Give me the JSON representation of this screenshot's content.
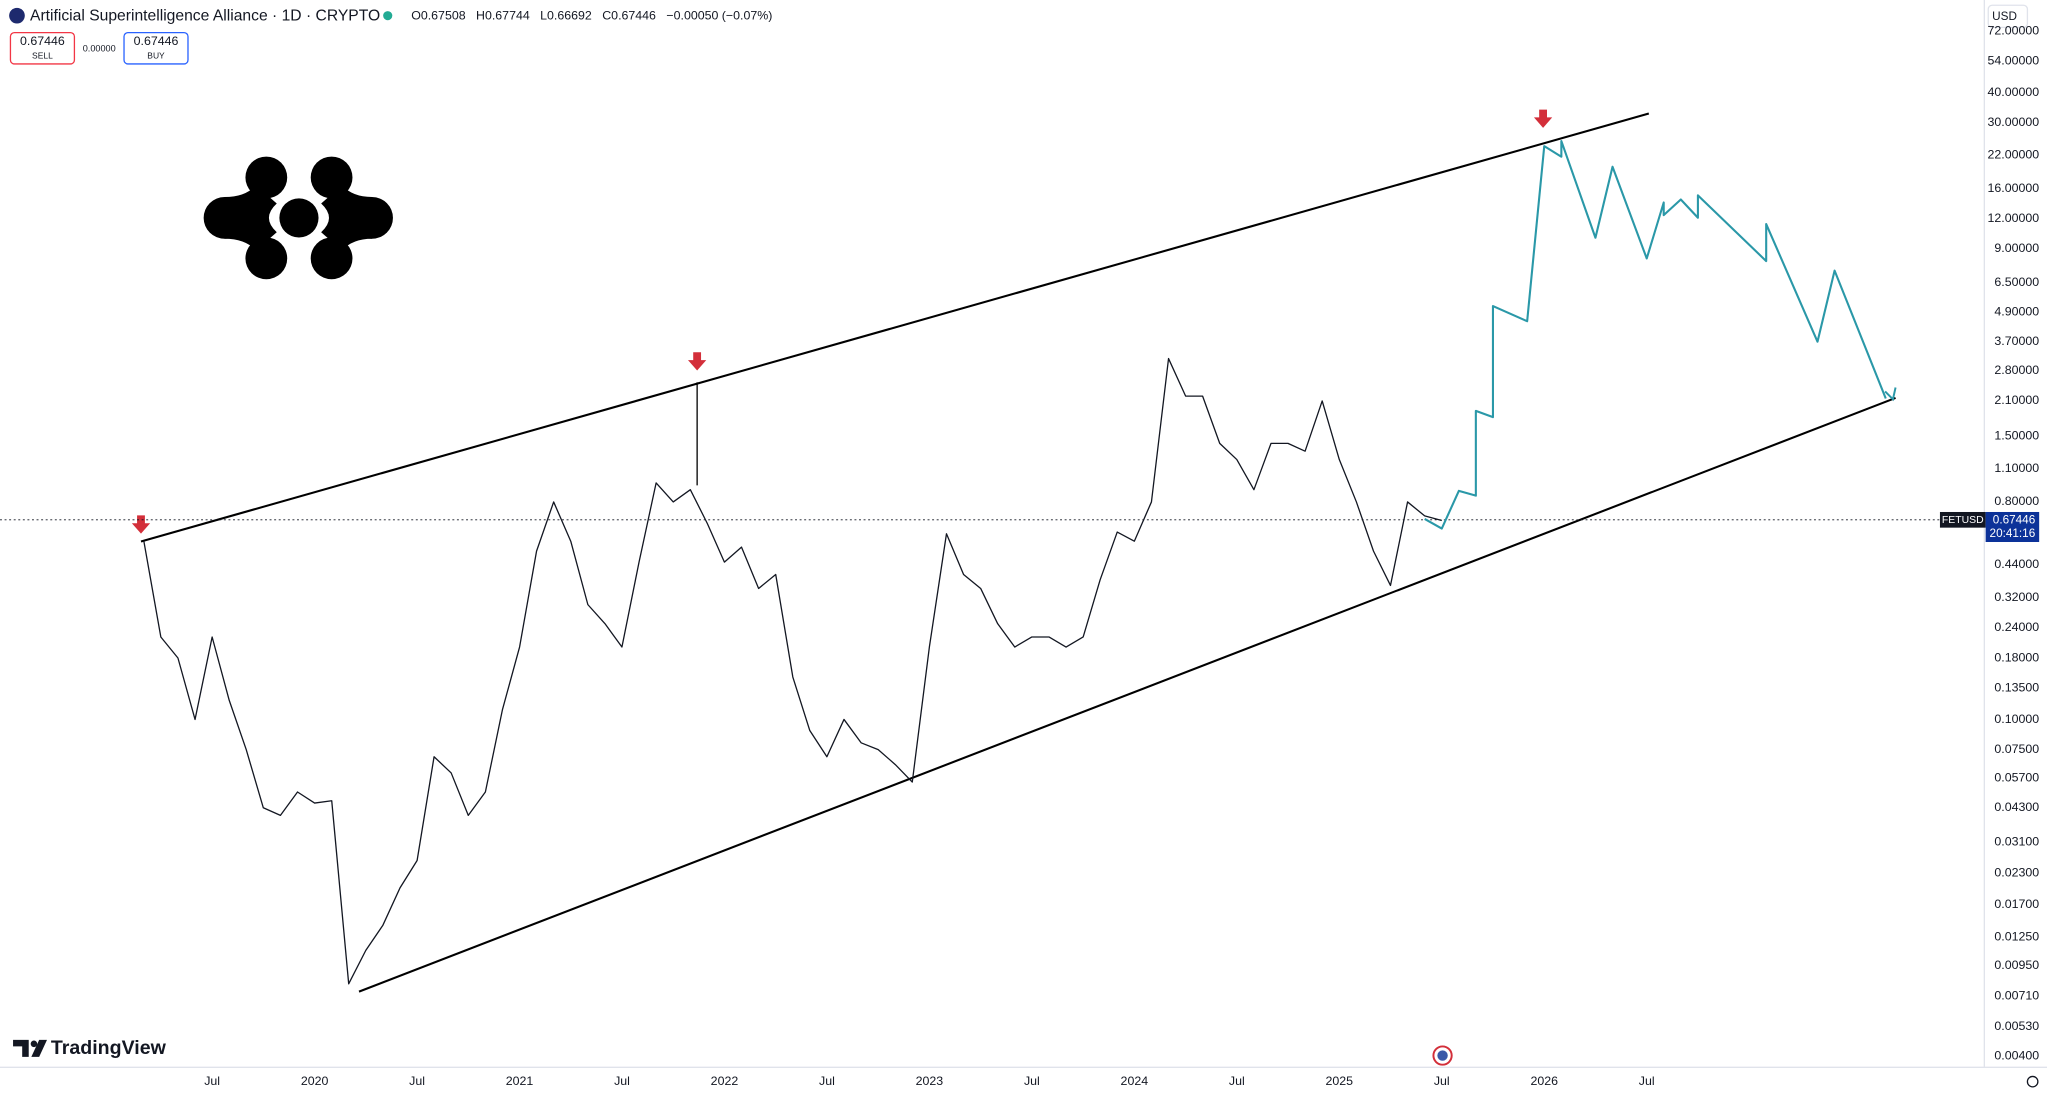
{
  "header": {
    "title": "Artificial Superintelligence Alliance · 1D · CRYPTO",
    "ohlc": [
      "O0.67508",
      "H0.67744",
      "L0.66692",
      "C0.67446",
      "−0.00050 (−0.07%)"
    ],
    "sell_price": "0.67446",
    "sell": "SELL",
    "spread": "0.00000",
    "buy_price": "0.67446",
    "buy": "BUY",
    "currency": "USD"
  },
  "price_tag": {
    "symbol": "FETUSD",
    "countdown": "20:41:16"
  },
  "brand": "TradingView",
  "chart_data": {
    "type": "line",
    "log_scale": true,
    "grid": false,
    "last": 0.67446,
    "xlim": [
      "2018-07",
      "2028-03"
    ],
    "xticks": [
      {
        "value": "2019-07",
        "label": "Jul"
      },
      {
        "value": "2020-01",
        "label": "2020"
      },
      {
        "value": "2020-07",
        "label": "Jul"
      },
      {
        "value": "2021-01",
        "label": "2021"
      },
      {
        "value": "2021-07",
        "label": "Jul"
      },
      {
        "value": "2022-01",
        "label": "2022"
      },
      {
        "value": "2022-07",
        "label": "Jul"
      },
      {
        "value": "2023-01",
        "label": "2023"
      },
      {
        "value": "2023-07",
        "label": "Jul"
      },
      {
        "value": "2024-01",
        "label": "2024"
      },
      {
        "value": "2024-07",
        "label": "Jul"
      },
      {
        "value": "2025-01",
        "label": "2025"
      },
      {
        "value": "2025-07",
        "label": "Jul"
      },
      {
        "value": "2026-01",
        "label": "2026"
      },
      {
        "value": "2026-07",
        "label": "Jul"
      }
    ],
    "ylim": [
      0.0036,
      97
    ],
    "yticks": [
      {
        "value": 72,
        "label": "72.00000"
      },
      {
        "value": 54,
        "label": "54.00000"
      },
      {
        "value": 40,
        "label": "40.00000"
      },
      {
        "value": 30,
        "label": "30.00000"
      },
      {
        "value": 22,
        "label": "22.00000"
      },
      {
        "value": 16,
        "label": "16.00000"
      },
      {
        "value": 12,
        "label": "12.00000"
      },
      {
        "value": 9,
        "label": "9.00000"
      },
      {
        "value": 6.5,
        "label": "6.50000"
      },
      {
        "value": 4.9,
        "label": "4.90000"
      },
      {
        "value": 3.7,
        "label": "3.70000"
      },
      {
        "value": 2.8,
        "label": "2.80000"
      },
      {
        "value": 2.1,
        "label": "2.10000"
      },
      {
        "value": 1.5,
        "label": "1.50000"
      },
      {
        "value": 1.1,
        "label": "1.10000"
      },
      {
        "value": 0.8,
        "label": "0.80000"
      },
      {
        "value": 0.44,
        "label": "0.44000"
      },
      {
        "value": 0.32,
        "label": "0.32000"
      },
      {
        "value": 0.24,
        "label": "0.24000"
      },
      {
        "value": 0.18,
        "label": "0.18000"
      },
      {
        "value": 0.135,
        "label": "0.13500"
      },
      {
        "value": 0.1,
        "label": "0.10000"
      },
      {
        "value": 0.075,
        "label": "0.07500"
      },
      {
        "value": 0.057,
        "label": "0.05700"
      },
      {
        "value": 0.043,
        "label": "0.04300"
      },
      {
        "value": 0.031,
        "label": "0.03100"
      },
      {
        "value": 0.023,
        "label": "0.02300"
      },
      {
        "value": 0.017,
        "label": "0.01700"
      },
      {
        "value": 0.0125,
        "label": "0.01250"
      },
      {
        "value": 0.0095,
        "label": "0.00950"
      },
      {
        "value": 0.0071,
        "label": "0.00710"
      },
      {
        "value": 0.0053,
        "label": "0.00530"
      },
      {
        "value": 0.004,
        "label": "0.00400"
      }
    ],
    "series": [
      {
        "color": "#131722",
        "x": [
          "2019-03",
          "2019-04",
          "2019-05",
          "2019-06",
          "2019-07",
          "2019-08",
          "2019-09",
          "2019-10",
          "2019-11",
          "2019-12",
          "2020-01",
          "2020-02",
          "2020-03",
          "2020-04",
          "2020-05",
          "2020-06",
          "2020-07",
          "2020-08",
          "2020-09",
          "2020-10",
          "2020-11",
          "2020-12",
          "2021-01",
          "2021-02",
          "2021-03",
          "2021-04",
          "2021-05",
          "2021-06",
          "2021-07",
          "2021-08",
          "2021-09",
          "2021-10",
          "2021-11",
          "2021-12",
          "2022-01",
          "2022-02",
          "2022-03",
          "2022-04",
          "2022-05",
          "2022-06",
          "2022-07",
          "2022-08",
          "2022-09",
          "2022-10",
          "2022-11",
          "2022-12",
          "2023-01",
          "2023-02",
          "2023-03",
          "2023-04",
          "2023-05",
          "2023-06",
          "2023-07",
          "2023-08",
          "2023-09",
          "2023-10",
          "2023-11",
          "2023-12",
          "2024-01",
          "2024-02",
          "2024-03",
          "2024-04",
          "2024-05",
          "2024-06",
          "2024-07",
          "2024-08",
          "2024-09",
          "2024-10",
          "2024-11",
          "2024-12",
          "2025-01",
          "2025-02",
          "2025-03",
          "2025-04",
          "2025-05",
          "2025-06",
          "2025-07"
        ],
        "values": [
          0.55,
          0.22,
          0.18,
          0.1,
          0.22,
          0.12,
          0.075,
          0.043,
          0.04,
          0.05,
          0.045,
          0.046,
          0.008,
          0.011,
          0.014,
          0.02,
          0.026,
          0.07,
          0.06,
          0.04,
          0.05,
          0.11,
          0.2,
          0.5,
          0.8,
          0.55,
          0.3,
          0.25,
          0.2,
          0.45,
          0.96,
          0.8,
          0.9,
          0.65,
          0.45,
          0.52,
          0.35,
          0.4,
          0.15,
          0.09,
          0.07,
          0.1,
          0.08,
          0.075,
          0.065,
          0.055,
          0.2,
          0.59,
          0.4,
          0.35,
          0.25,
          0.2,
          0.22,
          0.22,
          0.2,
          0.22,
          0.38,
          0.6,
          0.55,
          0.8,
          3.15,
          2.2,
          2.2,
          1.4,
          1.2,
          0.9,
          1.4,
          1.4,
          1.3,
          2.1,
          1.2,
          0.8,
          0.5,
          0.36,
          0.8,
          0.7,
          0.67
        ]
      },
      {
        "color": "#2a98a8",
        "x": [
          "2025-06",
          "2025-07",
          "2025-08",
          "2025-09",
          "2025-09",
          "2025-10",
          "2025-10",
          "2025-12",
          "2026-01",
          "2026-02",
          "2026-02",
          "2026-04",
          "2026-05",
          "2026-07",
          "2026-08",
          "2026-08",
          "2026-09",
          "2026-10",
          "2026-10",
          "2027-02",
          "2027-02",
          "2027-05",
          "2027-06",
          "2027-09"
        ],
        "values": [
          0.68,
          0.62,
          0.89,
          0.85,
          1.91,
          1.8,
          5.2,
          4.5,
          24,
          21.7,
          25.2,
          10,
          19.7,
          8.2,
          14,
          12.4,
          14.4,
          12.1,
          15,
          8,
          11.4,
          3.7,
          7.3,
          2.15
        ]
      }
    ]
  }
}
